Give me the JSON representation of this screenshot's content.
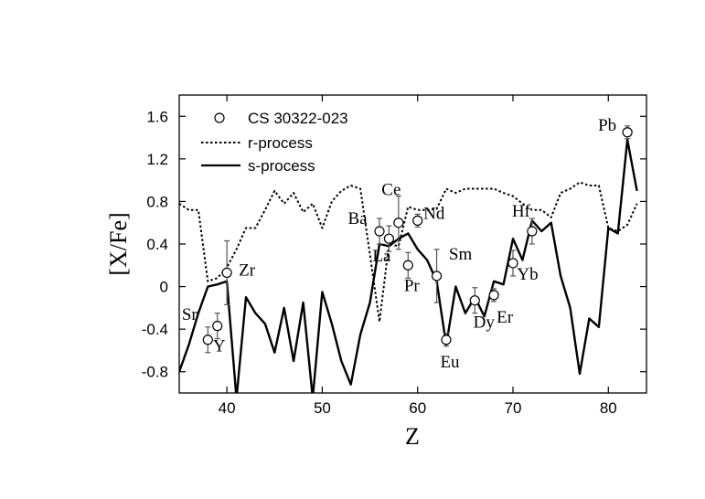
{
  "chart_data": {
    "type": "line",
    "xlabel": "Z",
    "ylabel": "[X/Fe]",
    "xlim": [
      35,
      84
    ],
    "ylim": [
      -1.0,
      1.8
    ],
    "xticks": [
      40,
      50,
      60,
      70,
      80
    ],
    "xtick_labels": [
      "40",
      "50",
      "60",
      "70",
      "80"
    ],
    "yticks": [
      1.6,
      1.2,
      0.8,
      0.4,
      0,
      -0.4,
      -0.8
    ],
    "ytick_labels": [
      "1.6",
      "1.2",
      "0.8",
      "0.4",
      "0",
      "-0.4",
      "-0.8"
    ],
    "grid": false,
    "legend_position": "top-left",
    "legend": [
      "CS 30322-023",
      "r-process",
      "s-process"
    ],
    "series": [
      {
        "name": "r-process",
        "style": "dotted",
        "color": "#000000",
        "x": [
          35,
          36,
          37,
          38,
          39,
          40,
          41,
          42,
          43,
          44,
          45,
          46,
          47,
          48,
          49,
          50,
          51,
          52,
          53,
          54,
          55,
          56,
          57,
          58,
          59,
          60,
          61,
          62,
          63,
          64,
          65,
          66,
          67,
          68,
          69,
          70,
          71,
          72,
          73,
          74,
          75,
          76,
          77,
          78,
          79,
          80,
          81,
          82,
          83
        ],
        "y": [
          0.78,
          0.72,
          0.72,
          0.05,
          0.08,
          0.18,
          0.35,
          0.55,
          0.55,
          0.72,
          0.9,
          0.78,
          0.88,
          0.7,
          0.78,
          0.55,
          0.8,
          0.9,
          0.95,
          0.92,
          0.3,
          -0.33,
          0.4,
          0.38,
          0.75,
          0.72,
          0.72,
          0.73,
          0.92,
          0.88,
          0.92,
          0.92,
          0.92,
          0.92,
          0.88,
          0.85,
          0.78,
          0.72,
          0.72,
          0.65,
          0.88,
          0.92,
          0.98,
          0.95,
          0.95,
          0.55,
          0.52,
          0.58,
          0.78
        ]
      },
      {
        "name": "s-process",
        "style": "solid",
        "color": "#000000",
        "x": [
          35,
          36,
          37,
          38,
          39,
          40,
          41,
          42,
          43,
          44,
          45,
          46,
          47,
          48,
          49,
          50,
          51,
          52,
          53,
          54,
          55,
          56,
          57,
          58,
          59,
          60,
          61,
          62,
          63,
          64,
          65,
          66,
          67,
          68,
          69,
          70,
          71,
          72,
          73,
          74,
          75,
          76,
          77,
          78,
          79,
          80,
          81,
          82,
          83
        ],
        "y": [
          -0.8,
          -0.55,
          -0.25,
          0.0,
          0.02,
          0.05,
          -1.05,
          -0.1,
          -0.25,
          -0.35,
          -0.62,
          -0.2,
          -0.7,
          -0.15,
          -1.05,
          -0.05,
          -0.35,
          -0.7,
          -0.92,
          -0.45,
          -0.15,
          0.4,
          0.38,
          0.45,
          0.5,
          0.35,
          0.25,
          0.05,
          -0.55,
          0.0,
          -0.25,
          -0.1,
          -0.28,
          0.05,
          0.02,
          0.45,
          0.25,
          0.62,
          0.52,
          0.6,
          0.1,
          -0.2,
          -0.82,
          -0.3,
          -0.38,
          0.55,
          0.5,
          1.38,
          0.9
        ]
      },
      {
        "name": "CS 30322-023",
        "style": "markers",
        "points": [
          {
            "label": "Sr",
            "x": 38,
            "y": -0.5,
            "err": 0.12
          },
          {
            "label": "Y",
            "x": 39,
            "y": -0.37,
            "err": 0.12
          },
          {
            "label": "Zr",
            "x": 40,
            "y": 0.13,
            "err": 0.3
          },
          {
            "label": "Ba",
            "x": 56,
            "y": 0.52,
            "err": 0.12
          },
          {
            "label": "La",
            "x": 57,
            "y": 0.45,
            "err": 0.12
          },
          {
            "label": "Ce",
            "x": 58,
            "y": 0.6,
            "err": 0.25
          },
          {
            "label": "Pr",
            "x": 59,
            "y": 0.2,
            "err": 0.12
          },
          {
            "label": "Nd",
            "x": 60,
            "y": 0.62,
            "err": 0.06
          },
          {
            "label": "Sm",
            "x": 62,
            "y": 0.1,
            "err": 0.25
          },
          {
            "label": "Eu",
            "x": 63,
            "y": -0.5,
            "err": 0.06
          },
          {
            "label": "Dy",
            "x": 66,
            "y": -0.13,
            "err": 0.12
          },
          {
            "label": "Er",
            "x": 68,
            "y": -0.08,
            "err": 0.06
          },
          {
            "label": "Yb",
            "x": 70,
            "y": 0.22,
            "err": 0.12
          },
          {
            "label": "Hf",
            "x": 72,
            "y": 0.52,
            "err": 0.12
          },
          {
            "label": "Pb",
            "x": 82,
            "y": 1.45,
            "err": 0.06
          }
        ]
      }
    ]
  }
}
